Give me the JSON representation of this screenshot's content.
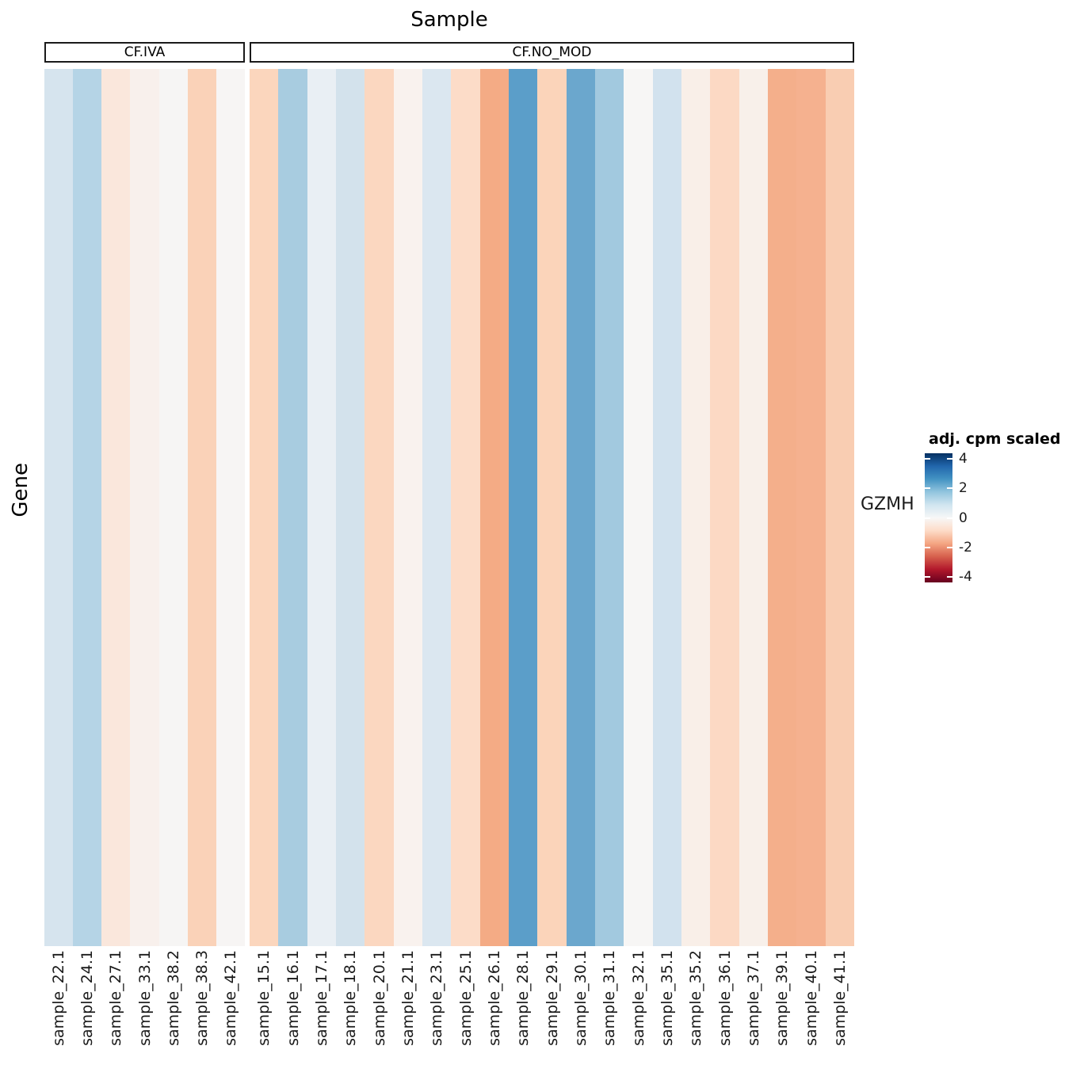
{
  "title": "Sample",
  "ylabel": "Gene",
  "row_label": "GZMH",
  "groups": [
    {
      "label": "CF.IVA"
    },
    {
      "label": "CF.NO_MOD"
    }
  ],
  "legend": {
    "title": "adj. cpm scaled",
    "ticks": [
      4,
      2,
      0,
      -2,
      -4
    ],
    "range": [
      -4.35,
      4.35
    ],
    "gradient": [
      "#053061",
      "#2166ac",
      "#4393c3",
      "#92c5de",
      "#d1e5f0",
      "#f7f7f7",
      "#fddbc7",
      "#f4a582",
      "#d6604d",
      "#b2182b",
      "#67001f"
    ]
  },
  "chart_data": {
    "type": "heatmap",
    "title": "Sample",
    "xlabel": "Sample",
    "ylabel": "Gene",
    "rows": [
      "GZMH"
    ],
    "column_groups": [
      "CF.IVA",
      "CF.NO_MOD"
    ],
    "legend_title": "adj. cpm scaled",
    "legend_ticks": [
      4,
      2,
      0,
      -2,
      -4
    ],
    "value_range": [
      -4.35,
      4.35
    ],
    "colorscale": "RdBu reversed (blue = high, red = low)",
    "cells": [
      {
        "sample": "sample_22.1",
        "group": "CF.IVA",
        "value": 0.7,
        "color": "#d6e4ee"
      },
      {
        "sample": "sample_24.1",
        "group": "CF.IVA",
        "value": 1.2,
        "color": "#b5d4e6"
      },
      {
        "sample": "sample_27.1",
        "group": "CF.IVA",
        "value": -0.4,
        "color": "#fae7dc"
      },
      {
        "sample": "sample_33.1",
        "group": "CF.IVA",
        "value": -0.15,
        "color": "#f8f0ec"
      },
      {
        "sample": "sample_38.2",
        "group": "CF.IVA",
        "value": 0.0,
        "color": "#f6f5f4"
      },
      {
        "sample": "sample_38.3",
        "group": "CF.IVA",
        "value": -0.9,
        "color": "#fad2b8"
      },
      {
        "sample": "sample_42.1",
        "group": "CF.IVA",
        "value": 0.0,
        "color": "#f7f5f4"
      },
      {
        "sample": "sample_15.1",
        "group": "CF.NO_MOD",
        "value": -0.8,
        "color": "#fbd6bd"
      },
      {
        "sample": "sample_16.1",
        "group": "CF.NO_MOD",
        "value": 1.35,
        "color": "#a8cce0"
      },
      {
        "sample": "sample_17.1",
        "group": "CF.NO_MOD",
        "value": 0.3,
        "color": "#e9eff4"
      },
      {
        "sample": "sample_18.1",
        "group": "CF.NO_MOD",
        "value": 0.75,
        "color": "#d3e2ec"
      },
      {
        "sample": "sample_20.1",
        "group": "CF.NO_MOD",
        "value": -0.8,
        "color": "#fbd7c0"
      },
      {
        "sample": "sample_21.1",
        "group": "CF.NO_MOD",
        "value": -0.1,
        "color": "#f9f2ee"
      },
      {
        "sample": "sample_23.1",
        "group": "CF.NO_MOD",
        "value": 0.6,
        "color": "#dbe7f0"
      },
      {
        "sample": "sample_25.1",
        "group": "CF.NO_MOD",
        "value": -0.65,
        "color": "#fcdcc8"
      },
      {
        "sample": "sample_26.1",
        "group": "CF.NO_MOD",
        "value": -1.5,
        "color": "#f4ab85"
      },
      {
        "sample": "sample_28.1",
        "group": "CF.NO_MOD",
        "value": 2.3,
        "color": "#5b9ec9"
      },
      {
        "sample": "sample_29.1",
        "group": "CF.NO_MOD",
        "value": -0.85,
        "color": "#fbd4ba"
      },
      {
        "sample": "sample_30.1",
        "group": "CF.NO_MOD",
        "value": 2.0,
        "color": "#6ba7cd"
      },
      {
        "sample": "sample_31.1",
        "group": "CF.NO_MOD",
        "value": 1.4,
        "color": "#a2c9df"
      },
      {
        "sample": "sample_32.1",
        "group": "CF.NO_MOD",
        "value": 0.0,
        "color": "#f7f6f5"
      },
      {
        "sample": "sample_35.1",
        "group": "CF.NO_MOD",
        "value": 0.75,
        "color": "#d2e2ee"
      },
      {
        "sample": "sample_35.2",
        "group": "CF.NO_MOD",
        "value": -0.2,
        "color": "#f9efe8"
      },
      {
        "sample": "sample_36.1",
        "group": "CF.NO_MOD",
        "value": -0.7,
        "color": "#fcd9c4"
      },
      {
        "sample": "sample_37.1",
        "group": "CF.NO_MOD",
        "value": -0.2,
        "color": "#f8f0ea"
      },
      {
        "sample": "sample_39.1",
        "group": "CF.NO_MOD",
        "value": -1.4,
        "color": "#f4af8b"
      },
      {
        "sample": "sample_40.1",
        "group": "CF.NO_MOD",
        "value": -1.35,
        "color": "#f5b18f"
      },
      {
        "sample": "sample_41.1",
        "group": "CF.NO_MOD",
        "value": -1.0,
        "color": "#f9cdb2"
      }
    ]
  }
}
